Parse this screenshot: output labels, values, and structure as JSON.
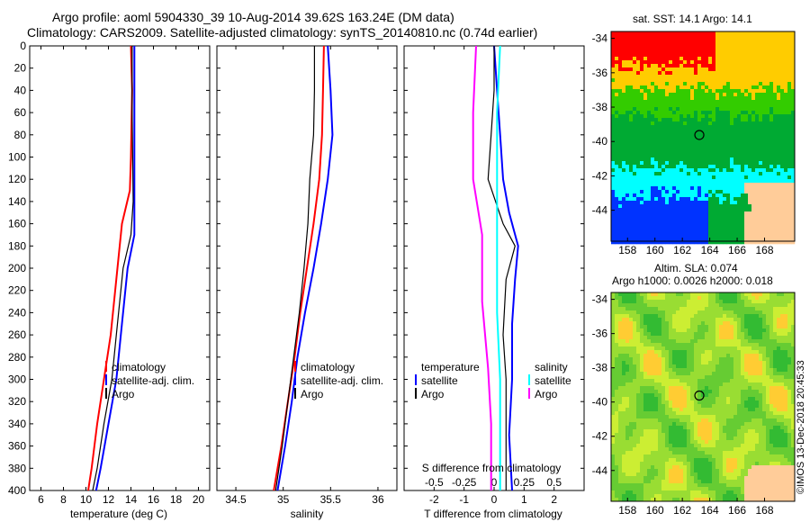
{
  "header": {
    "title_line1": "Argo profile: aoml 5904330_39 10-Aug-2014 39.62S 163.24E (DM data)",
    "title_line2": "Climatology: CARS2009. Satellite-adjusted climatology: synTS_20140810.nc (0.74d earlier)"
  },
  "colors": {
    "climatology": "#ff0000",
    "satellite_adj": "#0000ff",
    "argo": "#000000",
    "salinity_satellite": "#00ffff",
    "salinity_argo": "#ff00ff",
    "land": "#ffcc99"
  },
  "chart_data": [
    {
      "name": "temperature-profile",
      "type": "line",
      "xlabel": "temperature (deg C)",
      "ylabel": "",
      "xlim": [
        5,
        21
      ],
      "ylim": [
        400,
        0
      ],
      "xticks": [
        "6",
        "8",
        "10",
        "12",
        "14",
        "16",
        "18",
        "20"
      ],
      "xtick_values": [
        6,
        8,
        10,
        12,
        14,
        16,
        18,
        20
      ],
      "yticks": [
        "0",
        "20",
        "40",
        "60",
        "80",
        "100",
        "120",
        "140",
        "160",
        "180",
        "200",
        "220",
        "240",
        "260",
        "280",
        "300",
        "320",
        "340",
        "360",
        "380",
        "400"
      ],
      "legend": [
        "climatology",
        "satellite-adj. clim.",
        "Argo"
      ],
      "series": [
        {
          "name": "climatology",
          "color": "#ff0000",
          "width": 2,
          "points": [
            [
              14.0,
              0
            ],
            [
              14.1,
              40
            ],
            [
              14.0,
              100
            ],
            [
              13.9,
              130
            ],
            [
              13.2,
              160
            ],
            [
              12.8,
              200
            ],
            [
              12.2,
              260
            ],
            [
              11.6,
              300
            ],
            [
              11.0,
              340
            ],
            [
              10.5,
              380
            ],
            [
              10.2,
              400
            ]
          ]
        },
        {
          "name": "satellite-adj. clim.",
          "color": "#0000ff",
          "width": 2,
          "points": [
            [
              14.3,
              0
            ],
            [
              14.3,
              60
            ],
            [
              14.3,
              120
            ],
            [
              14.3,
              170
            ],
            [
              13.7,
              200
            ],
            [
              13.2,
              250
            ],
            [
              12.7,
              300
            ],
            [
              12.0,
              340
            ],
            [
              11.3,
              380
            ],
            [
              10.9,
              400
            ]
          ]
        },
        {
          "name": "Argo",
          "color": "#000000",
          "width": 1.2,
          "points": [
            [
              14.1,
              0
            ],
            [
              14.1,
              60
            ],
            [
              14.2,
              140
            ],
            [
              14.0,
              170
            ],
            [
              13.3,
              200
            ],
            [
              12.8,
              250
            ],
            [
              12.3,
              300
            ],
            [
              11.6,
              340
            ],
            [
              11.0,
              380
            ],
            [
              10.6,
              400
            ]
          ]
        }
      ]
    },
    {
      "name": "salinity-profile",
      "type": "line",
      "xlabel": "salinity",
      "xlim": [
        34.3,
        36.2
      ],
      "ylim": [
        400,
        0
      ],
      "xticks": [
        "34.5",
        "35",
        "35.5",
        "36"
      ],
      "xtick_values": [
        34.5,
        35,
        35.5,
        36
      ],
      "legend": [
        "climatology",
        "satellite-adj. clim.",
        "Argo"
      ],
      "series": [
        {
          "name": "climatology",
          "color": "#ff0000",
          "width": 2,
          "points": [
            [
              35.43,
              0
            ],
            [
              35.42,
              40
            ],
            [
              35.41,
              80
            ],
            [
              35.38,
              120
            ],
            [
              35.32,
              160
            ],
            [
              35.25,
              200
            ],
            [
              35.18,
              240
            ],
            [
              35.12,
              280
            ],
            [
              35.05,
              320
            ],
            [
              34.98,
              360
            ],
            [
              34.9,
              400
            ]
          ]
        },
        {
          "name": "satellite-adj. clim.",
          "color": "#0000ff",
          "width": 2,
          "points": [
            [
              35.47,
              0
            ],
            [
              35.5,
              40
            ],
            [
              35.52,
              80
            ],
            [
              35.47,
              120
            ],
            [
              35.4,
              160
            ],
            [
              35.32,
              200
            ],
            [
              35.23,
              240
            ],
            [
              35.15,
              280
            ],
            [
              35.09,
              320
            ],
            [
              35.02,
              360
            ],
            [
              34.94,
              400
            ]
          ]
        },
        {
          "name": "Argo",
          "color": "#000000",
          "width": 1.2,
          "points": [
            [
              35.33,
              0
            ],
            [
              35.33,
              40
            ],
            [
              35.32,
              80
            ],
            [
              35.28,
              120
            ],
            [
              35.26,
              160
            ],
            [
              35.22,
              200
            ],
            [
              35.17,
              240
            ],
            [
              35.11,
              280
            ],
            [
              35.05,
              320
            ],
            [
              34.99,
              360
            ],
            [
              34.92,
              400
            ]
          ]
        }
      ]
    },
    {
      "name": "difference-profile",
      "type": "line",
      "xlabel": "T difference from climatology",
      "xlabel2": "S difference from climatology",
      "xlim": [
        -3,
        3
      ],
      "ylim": [
        400,
        0
      ],
      "xticks": [
        "-2",
        "-1",
        "0",
        "1",
        "2"
      ],
      "xtick_values": [
        -2,
        -1,
        0,
        1,
        2
      ],
      "xticks2": [
        "-0.5",
        "-0.25",
        "0",
        "0.25",
        "0.5"
      ],
      "xtick2_values": [
        -0.5,
        -0.25,
        0,
        0.25,
        0.5
      ],
      "legend_temperature_title": "temperature",
      "legend_salinity_title": "salinity",
      "legend_temperature": [
        "satellite",
        "Argo"
      ],
      "legend_salinity": [
        "satellite",
        "Argo"
      ],
      "series": [
        {
          "name": "temperature satellite",
          "color": "#0000ff",
          "width": 2,
          "points": [
            [
              0.0,
              0
            ],
            [
              0.1,
              40
            ],
            [
              0.2,
              80
            ],
            [
              0.3,
              120
            ],
            [
              0.5,
              150
            ],
            [
              0.8,
              180
            ],
            [
              0.7,
              210
            ],
            [
              0.6,
              250
            ],
            [
              0.6,
              300
            ],
            [
              0.5,
              350
            ],
            [
              0.6,
              400
            ]
          ]
        },
        {
          "name": "temperature Argo",
          "color": "#000000",
          "width": 1.2,
          "points": [
            [
              0.0,
              0
            ],
            [
              0.0,
              40
            ],
            [
              -0.1,
              80
            ],
            [
              -0.2,
              120
            ],
            [
              0.3,
              160
            ],
            [
              0.7,
              180
            ],
            [
              0.4,
              210
            ],
            [
              0.3,
              260
            ],
            [
              0.4,
              300
            ],
            [
              0.4,
              350
            ],
            [
              0.4,
              400
            ]
          ]
        },
        {
          "name": "salinity satellite",
          "color": "#00ffff",
          "width": 2,
          "points": [
            [
              0.2,
              0
            ],
            [
              0.1,
              60
            ],
            [
              0.1,
              120
            ],
            [
              0.1,
              180
            ],
            [
              0.1,
              240
            ],
            [
              0.2,
              300
            ],
            [
              0.2,
              360
            ],
            [
              0.2,
              400
            ]
          ]
        },
        {
          "name": "salinity Argo",
          "color": "#ff00ff",
          "width": 2,
          "points": [
            [
              -0.6,
              0
            ],
            [
              -0.7,
              60
            ],
            [
              -0.7,
              120
            ],
            [
              -0.4,
              170
            ],
            [
              -0.4,
              230
            ],
            [
              -0.2,
              290
            ],
            [
              -0.1,
              340
            ],
            [
              -0.1,
              400
            ]
          ]
        }
      ]
    }
  ],
  "maps": {
    "sst": {
      "title": "sat. SST: 14.1 Argo: 14.1",
      "yticks": [
        "-34",
        "-36",
        "-38",
        "-40",
        "-42",
        "-44"
      ],
      "xticks": [
        "158",
        "160",
        "162",
        "164",
        "166",
        "168"
      ],
      "xtick_values": [
        158,
        160,
        162,
        164,
        166,
        168
      ],
      "ytick_values": [
        -34,
        -36,
        -38,
        -40,
        -42,
        -44
      ],
      "lon_range": [
        156.8,
        170.2
      ],
      "lat_range": [
        -33.6,
        -45.8
      ],
      "marker": [
        163.24,
        -39.62
      ]
    },
    "sla": {
      "title": "Altim. SLA: 0.074",
      "subtitle": "Argo h1000: 0.0026 h2000: 0.018",
      "yticks": [
        "-34",
        "-36",
        "-38",
        "-40",
        "-42",
        "-44"
      ],
      "xticks": [
        "158",
        "160",
        "162",
        "164",
        "166",
        "168"
      ],
      "xtick_values": [
        158,
        160,
        162,
        164,
        166,
        168
      ],
      "ytick_values": [
        -34,
        -36,
        -38,
        -40,
        -42,
        -44
      ],
      "lon_range": [
        156.8,
        170.2
      ],
      "lat_range": [
        -33.6,
        -45.8
      ],
      "marker": [
        163.24,
        -39.62
      ]
    }
  },
  "stamp": "©IMOS 13-Dec-2018 20:45:33"
}
